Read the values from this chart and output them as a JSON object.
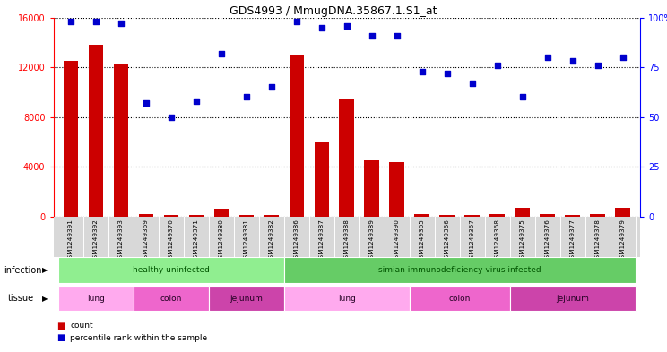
{
  "title": "GDS4993 / MmugDNA.35867.1.S1_at",
  "samples": [
    "GSM1249391",
    "GSM1249392",
    "GSM1249393",
    "GSM1249369",
    "GSM1249370",
    "GSM1249371",
    "GSM1249380",
    "GSM1249381",
    "GSM1249382",
    "GSM1249386",
    "GSM1249387",
    "GSM1249388",
    "GSM1249389",
    "GSM1249390",
    "GSM1249365",
    "GSM1249366",
    "GSM1249367",
    "GSM1249368",
    "GSM1249375",
    "GSM1249376",
    "GSM1249377",
    "GSM1249378",
    "GSM1249379"
  ],
  "counts": [
    12500,
    13800,
    12200,
    200,
    150,
    120,
    600,
    130,
    150,
    13000,
    6000,
    9500,
    4500,
    4400,
    200,
    150,
    120,
    200,
    700,
    180,
    150,
    160,
    700
  ],
  "percentiles": [
    98,
    98,
    97,
    57,
    50,
    58,
    82,
    60,
    65,
    98,
    95,
    96,
    91,
    91,
    73,
    72,
    67,
    76,
    60,
    80,
    78,
    76,
    80
  ],
  "infection_groups": [
    {
      "label": "healthy uninfected",
      "start": 0,
      "end": 9,
      "color": "#90EE90"
    },
    {
      "label": "simian immunodeficiency virus infected",
      "start": 9,
      "end": 23,
      "color": "#66CC66"
    }
  ],
  "tissue_groups": [
    {
      "label": "lung",
      "start": 0,
      "end": 3,
      "color": "#FFAAEE"
    },
    {
      "label": "colon",
      "start": 3,
      "end": 6,
      "color": "#EE66CC"
    },
    {
      "label": "jejunum",
      "start": 6,
      "end": 9,
      "color": "#CC44AA"
    },
    {
      "label": "lung",
      "start": 9,
      "end": 14,
      "color": "#FFAAEE"
    },
    {
      "label": "colon",
      "start": 14,
      "end": 18,
      "color": "#EE66CC"
    },
    {
      "label": "jejunum",
      "start": 18,
      "end": 23,
      "color": "#CC44AA"
    }
  ],
  "ylim_left": [
    0,
    16000
  ],
  "ylim_right": [
    0,
    100
  ],
  "yticks_left": [
    0,
    4000,
    8000,
    12000,
    16000
  ],
  "yticks_right": [
    0,
    25,
    50,
    75,
    100
  ],
  "bar_color": "#CC0000",
  "dot_color": "#0000CC",
  "infection_label_color": "#005500",
  "tissue_label_color": "#220022"
}
